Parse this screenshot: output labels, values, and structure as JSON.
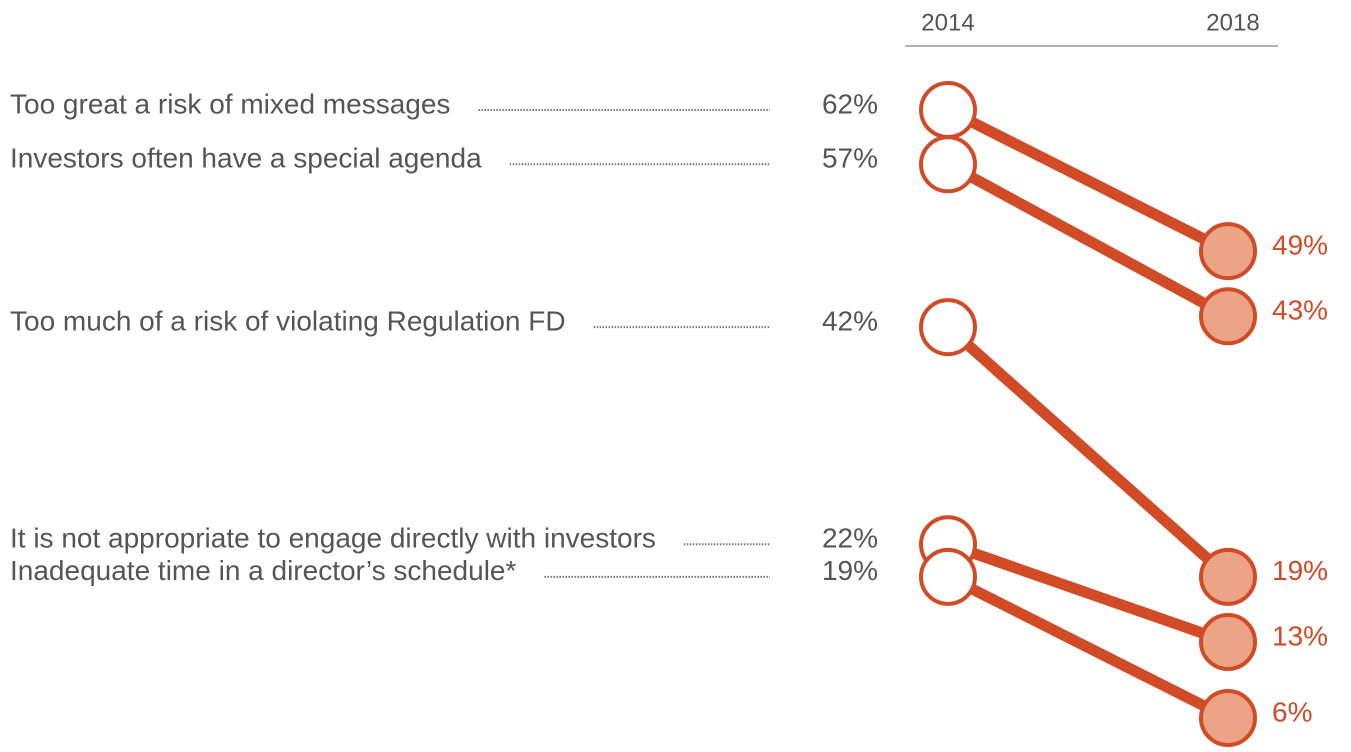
{
  "chart_data": {
    "type": "slope",
    "categories": [
      "Too great a risk of mixed messages",
      "Investors often have a special agenda",
      "Too much of a risk of violating Regulation FD",
      "It is not appropriate to engage directly with investors",
      "Inadequate time in a director’s schedule*"
    ],
    "series": [
      {
        "name": "2014",
        "color": "#ffffff",
        "values": [
          62,
          57,
          42,
          22,
          19
        ],
        "value_labels": [
          "62%",
          "57%",
          "42%",
          "22%",
          "19%"
        ]
      },
      {
        "name": "2018",
        "color": "#eba586",
        "values": [
          49,
          43,
          19,
          13,
          6
        ],
        "value_labels": [
          "49%",
          "43%",
          "19%",
          "13%",
          "6%"
        ]
      }
    ],
    "line_color": "#d14b27"
  }
}
